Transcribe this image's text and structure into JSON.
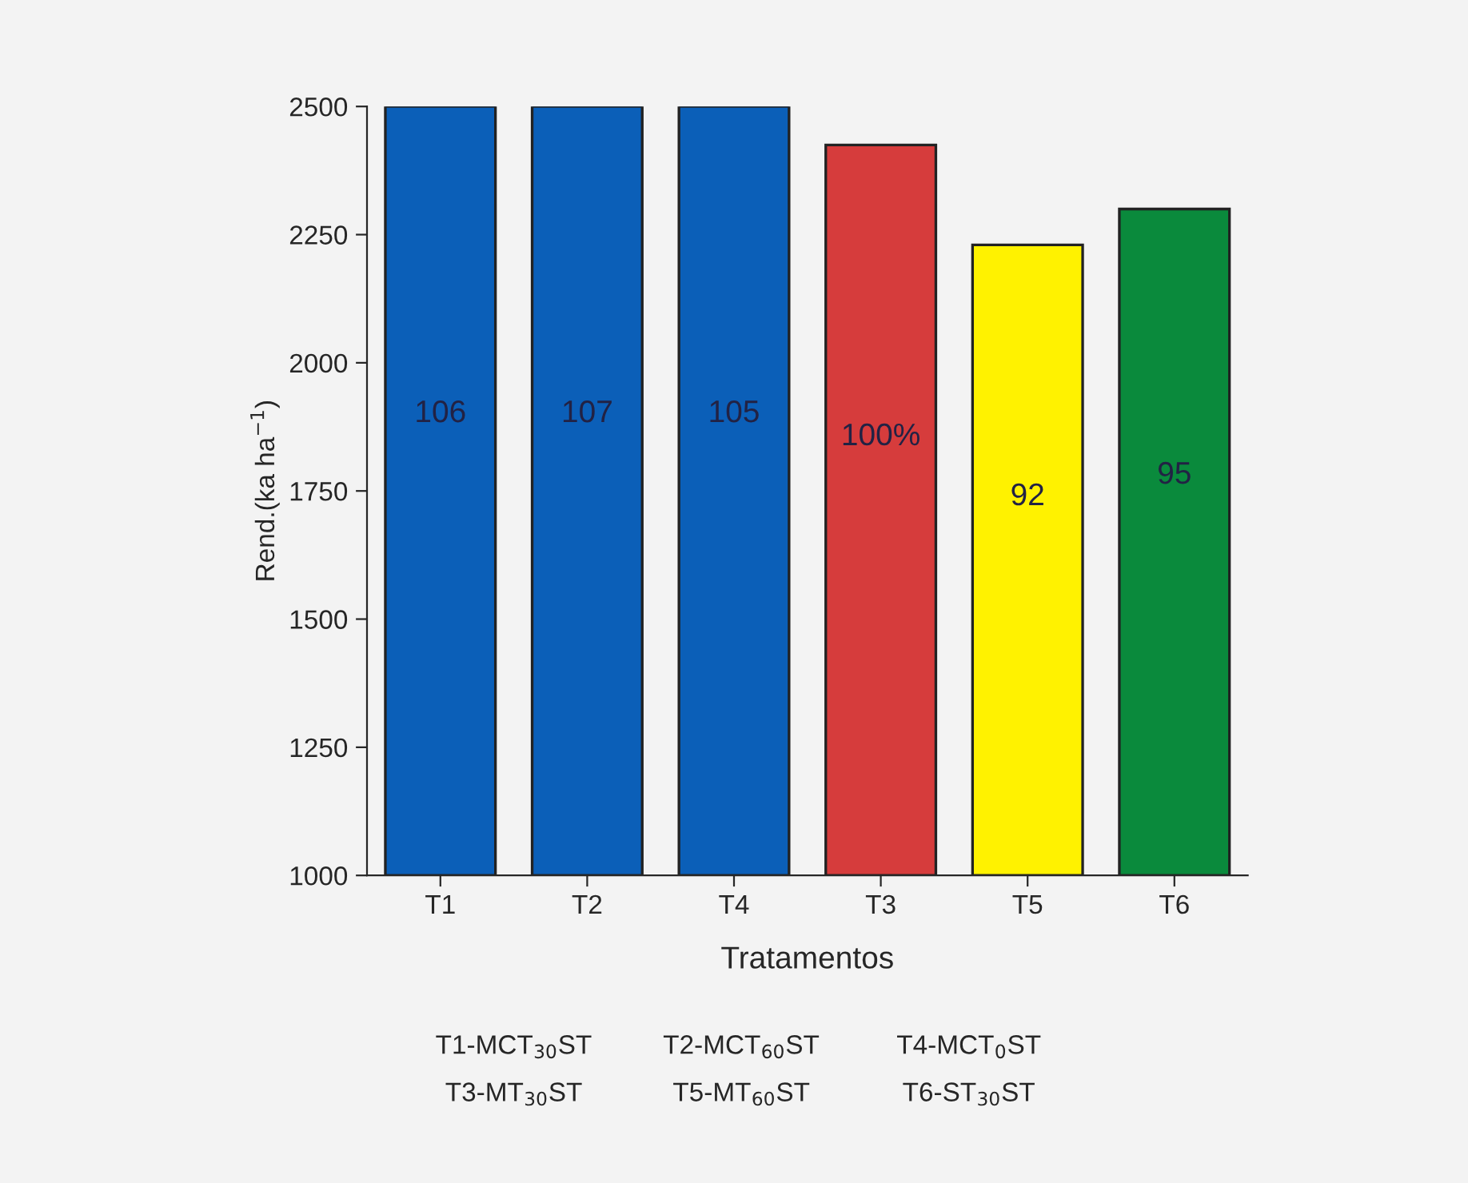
{
  "chart_data": {
    "type": "bar",
    "xlabel": "Tratamentos",
    "ylabel": "Rend.(ka ha$^{−1}$)",
    "categories": [
      "T1",
      "T2",
      "T4",
      "T3",
      "T5",
      "T6"
    ],
    "values": [
      2500,
      2500,
      2500,
      2425,
      2230,
      2300
    ],
    "colors": [
      "#0b5fb8",
      "#0b5fb8",
      "#0b5fb8",
      "#d63c3c",
      "#fff200",
      "#0a8a3c"
    ],
    "ylim": [
      1000,
      2500
    ],
    "yticks": [
      1000,
      1250,
      1500,
      1750,
      2000,
      2250,
      2500
    ],
    "grid": false,
    "legend": false,
    "annotations": [
      "106",
      "107",
      "105",
      "100%",
      "92",
      "95",
      "T1-MCT$_{30}$ST",
      "T2-MCT$_{60}$ST",
      "T4-MCT$_{0}$ST",
      "T3-MT$_{30}$ST",
      "T5-MT$_{60}$ST",
      "T6-ST$_{30}$ST"
    ]
  }
}
